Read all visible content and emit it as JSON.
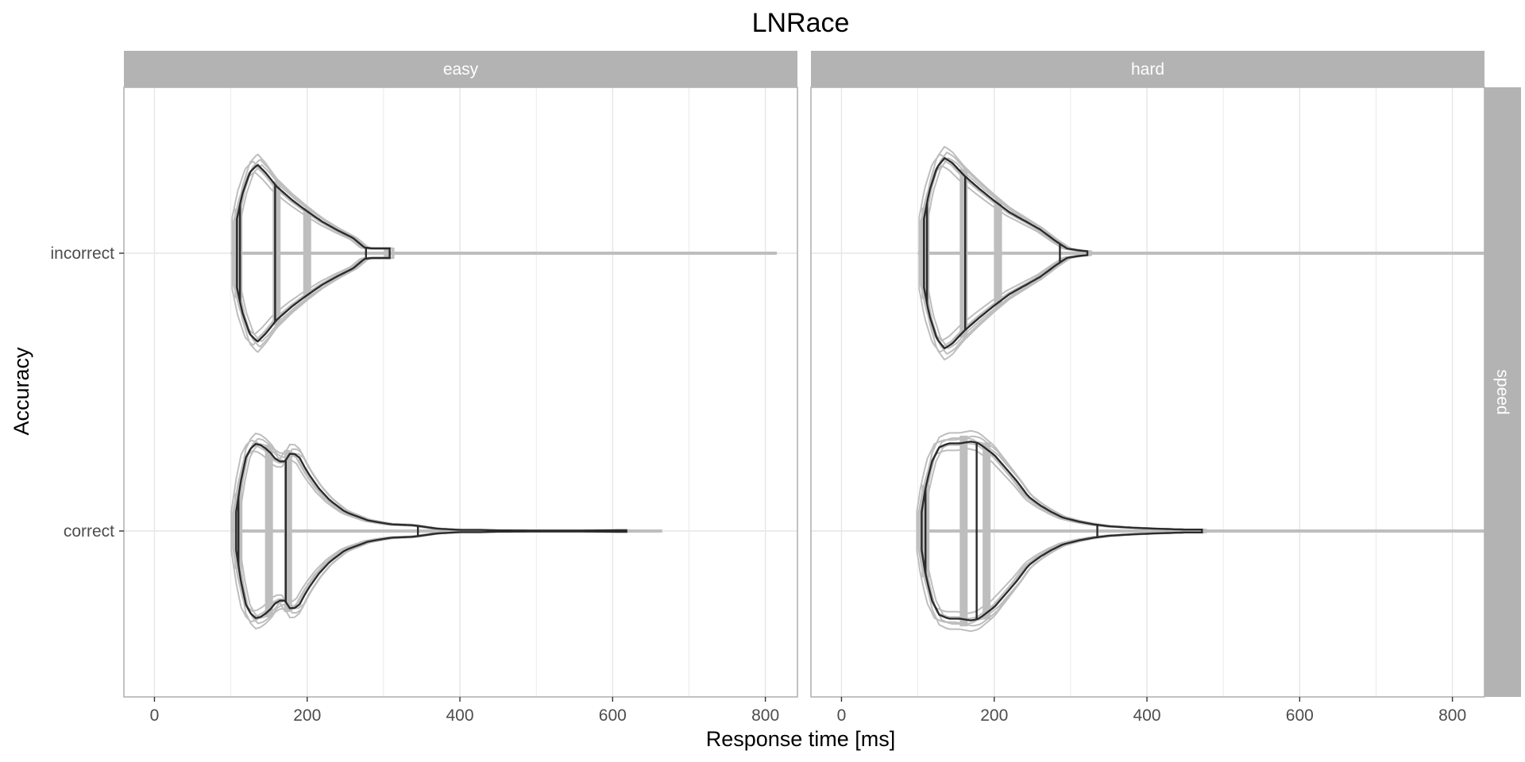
{
  "chart_data": {
    "type": "violin",
    "title": "LNRace",
    "xlabel": "Response time [ms]",
    "ylabel": "Accuracy",
    "x_ticks": [
      0,
      200,
      400,
      600,
      800
    ],
    "xlim": [
      -40,
      842
    ],
    "y_categories": [
      "correct",
      "incorrect"
    ],
    "facet_columns": [
      "easy",
      "hard"
    ],
    "facet_rows": [
      "speed"
    ],
    "grid": true,
    "colors": {
      "observed": "#2b2b2b",
      "posterior_predictive": "#bebebe",
      "strip": "#b3b3b3",
      "grid": "#e6e6e6",
      "panel_border": "#b3b3b3"
    },
    "panels": [
      {
        "column": "easy",
        "row": "speed",
        "violins": [
          {
            "category": "incorrect",
            "observed": {
              "min": 108,
              "max": 308,
              "quantiles": [
                112,
                158,
                277
              ],
              "density": [
                [
                  108,
                  0.36
                ],
                [
                  115,
                  0.62
                ],
                [
                  125,
                  0.85
                ],
                [
                  135,
                  0.93
                ],
                [
                  145,
                  0.85
                ],
                [
                  160,
                  0.7
                ],
                [
                  180,
                  0.56
                ],
                [
                  200,
                  0.44
                ],
                [
                  220,
                  0.33
                ],
                [
                  240,
                  0.24
                ],
                [
                  260,
                  0.16
                ],
                [
                  275,
                  0.06
                ],
                [
                  285,
                  0.05
                ],
                [
                  300,
                  0.05
                ],
                [
                  308,
                  0.05
                ]
              ]
            },
            "predicted": {
              "min": 100,
              "max": 815,
              "lines": [
                110,
                160,
                200
              ]
            }
          },
          {
            "category": "correct",
            "observed": {
              "min": 107,
              "max": 618,
              "quantiles": [
                110,
                172,
                345
              ],
              "density": [
                [
                  107,
                  0.2
                ],
                [
                  112,
                  0.48
                ],
                [
                  120,
                  0.78
                ],
                [
                  130,
                  0.92
                ],
                [
                  140,
                  0.9
                ],
                [
                  150,
                  0.84
                ],
                [
                  160,
                  0.74
                ],
                [
                  170,
                  0.72
                ],
                [
                  178,
                  0.82
                ],
                [
                  188,
                  0.8
                ],
                [
                  200,
                  0.62
                ],
                [
                  215,
                  0.45
                ],
                [
                  230,
                  0.32
                ],
                [
                  250,
                  0.2
                ],
                [
                  280,
                  0.11
                ],
                [
                  310,
                  0.07
                ],
                [
                  340,
                  0.06
                ],
                [
                  370,
                  0.025
                ],
                [
                  400,
                  0.012
                ],
                [
                  425,
                  0.012
                ],
                [
                  450,
                  0.007
                ],
                [
                  500,
                  0.005
                ],
                [
                  560,
                  0.005
                ],
                [
                  600,
                  0.008
                ],
                [
                  618,
                  0.008
                ]
              ]
            },
            "predicted": {
              "min": 100,
              "max": 665,
              "lines": [
                110,
                150,
                175
              ]
            }
          }
        ]
      },
      {
        "column": "hard",
        "row": "speed",
        "violins": [
          {
            "category": "incorrect",
            "observed": {
              "min": 108,
              "max": 322,
              "quantiles": [
                112,
                162,
                286
              ],
              "density": [
                [
                  108,
                  0.36
                ],
                [
                  115,
                  0.65
                ],
                [
                  125,
                  0.9
                ],
                [
                  135,
                  1.0
                ],
                [
                  145,
                  0.95
                ],
                [
                  160,
                  0.82
                ],
                [
                  180,
                  0.68
                ],
                [
                  200,
                  0.55
                ],
                [
                  220,
                  0.43
                ],
                [
                  240,
                  0.34
                ],
                [
                  260,
                  0.25
                ],
                [
                  280,
                  0.13
                ],
                [
                  295,
                  0.05
                ],
                [
                  310,
                  0.03
                ],
                [
                  322,
                  0.02
                ]
              ]
            },
            "predicted": {
              "min": 100,
              "max": 842,
              "lines": [
                110,
                160,
                205
              ]
            }
          },
          {
            "category": "correct",
            "observed": {
              "min": 105,
              "max": 472,
              "quantiles": [
                110,
                177,
                335
              ],
              "density": [
                [
                  105,
                  0.2
                ],
                [
                  110,
                  0.45
                ],
                [
                  118,
                  0.72
                ],
                [
                  128,
                  0.88
                ],
                [
                  140,
                  0.92
                ],
                [
                  155,
                  0.92
                ],
                [
                  170,
                  0.94
                ],
                [
                  180,
                  0.92
                ],
                [
                  200,
                  0.8
                ],
                [
                  215,
                  0.66
                ],
                [
                  230,
                  0.52
                ],
                [
                  245,
                  0.36
                ],
                [
                  260,
                  0.27
                ],
                [
                  275,
                  0.2
                ],
                [
                  290,
                  0.14
                ],
                [
                  310,
                  0.1
                ],
                [
                  330,
                  0.07
                ],
                [
                  350,
                  0.05
                ],
                [
                  380,
                  0.035
                ],
                [
                  410,
                  0.025
                ],
                [
                  430,
                  0.02
                ],
                [
                  450,
                  0.015
                ],
                [
                  472,
                  0.015
                ]
              ]
            },
            "predicted": {
              "min": 100,
              "max": 842,
              "lines": [
                110,
                160,
                190
              ]
            }
          }
        ]
      }
    ]
  }
}
